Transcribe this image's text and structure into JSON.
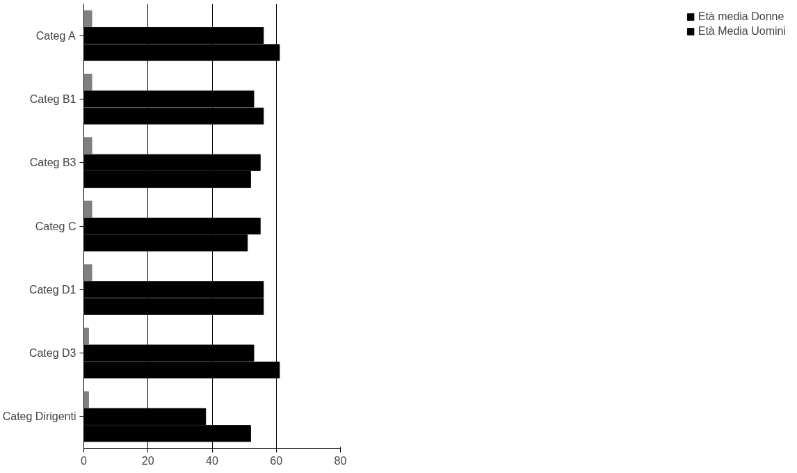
{
  "chart_data": {
    "type": "bar",
    "orientation": "horizontal",
    "categories": [
      "Categ A",
      "Categ B1",
      "Categ B3",
      "Categ C",
      "Categ D1",
      "Categ D3",
      "Categ Dirigenti"
    ],
    "series": [
      {
        "color": "#7f7f7f",
        "values": [
          2.5,
          2.5,
          2.5,
          2.5,
          2.5,
          1.5,
          1.5
        ]
      },
      {
        "name": "Età media Donne",
        "color": "#000000",
        "values": [
          56,
          53,
          55,
          55,
          56,
          53,
          38
        ]
      },
      {
        "name": "Età Media Uomini",
        "color": "#000000",
        "values": [
          61,
          56,
          52,
          51,
          56,
          61,
          52
        ]
      }
    ],
    "xlim": [
      0,
      80
    ],
    "xticks": [
      0,
      20,
      40,
      60,
      80
    ],
    "grid": "x",
    "legend": "right"
  }
}
